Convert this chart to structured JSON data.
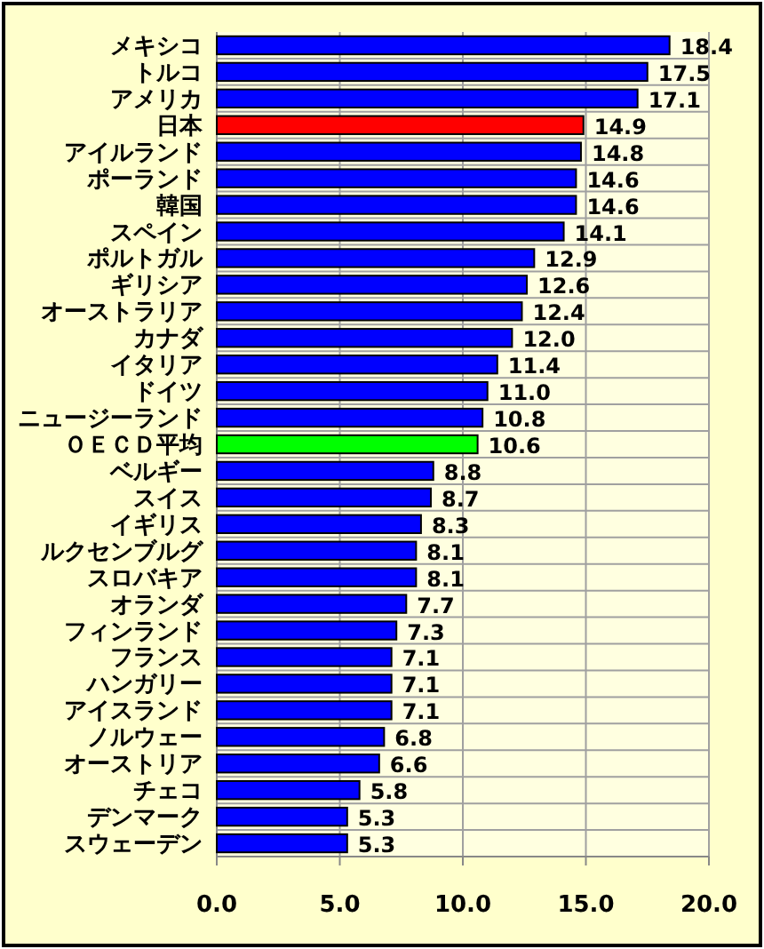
{
  "chart_data": {
    "type": "bar",
    "orientation": "horizontal",
    "categories": [
      "メキシコ",
      "トルコ",
      "アメリカ",
      "日本",
      "アイルランド",
      "ポーランド",
      "韓国",
      "スペイン",
      "ポルトガル",
      "ギリシア",
      "オーストラリア",
      "カナダ",
      "イタリア",
      "ドイツ",
      "ニュージーランド",
      "ＯＥＣＤ平均",
      "ベルギー",
      "スイス",
      "イギリス",
      "ルクセンブルグ",
      "スロバキア",
      "オランダ",
      "フィンランド",
      "フランス",
      "ハンガリー",
      "アイスランド",
      "ノルウェー",
      "オーストリア",
      "チェコ",
      "デンマーク",
      "スウェーデン"
    ],
    "values": [
      18.4,
      17.5,
      17.1,
      14.9,
      14.8,
      14.6,
      14.6,
      14.1,
      12.9,
      12.6,
      12.4,
      12.0,
      11.4,
      11.0,
      10.8,
      10.6,
      8.8,
      8.7,
      8.3,
      8.1,
      8.1,
      7.7,
      7.3,
      7.1,
      7.1,
      7.1,
      6.8,
      6.6,
      5.8,
      5.3,
      5.3
    ],
    "colors": [
      "#0000ff",
      "#0000ff",
      "#0000ff",
      "#ff0000",
      "#0000ff",
      "#0000ff",
      "#0000ff",
      "#0000ff",
      "#0000ff",
      "#0000ff",
      "#0000ff",
      "#0000ff",
      "#0000ff",
      "#0000ff",
      "#0000ff",
      "#00ff00",
      "#0000ff",
      "#0000ff",
      "#0000ff",
      "#0000ff",
      "#0000ff",
      "#0000ff",
      "#0000ff",
      "#0000ff",
      "#0000ff",
      "#0000ff",
      "#0000ff",
      "#0000ff",
      "#0000ff",
      "#0000ff",
      "#0000ff"
    ],
    "xlim": [
      0,
      20
    ],
    "xticks": [
      {
        "value": 0,
        "label": "0.0"
      },
      {
        "value": 5,
        "label": "5.0"
      },
      {
        "value": 10,
        "label": "10.0"
      },
      {
        "value": 15,
        "label": "15.0"
      },
      {
        "value": 20,
        "label": "20.0"
      }
    ],
    "value_labels": [
      "18.4",
      "17.5",
      "17.1",
      "14.9",
      "14.8",
      "14.6",
      "14.6",
      "14.1",
      "12.9",
      "12.6",
      "12.4",
      "12.0",
      "11.4",
      "11.0",
      "10.8",
      "10.6",
      "8.8",
      "8.7",
      "8.3",
      "8.1",
      "8.1",
      "7.7",
      "7.3",
      "7.1",
      "7.1",
      "7.1",
      "6.8",
      "6.6",
      "5.8",
      "5.3",
      "5.3"
    ],
    "grid": true
  }
}
